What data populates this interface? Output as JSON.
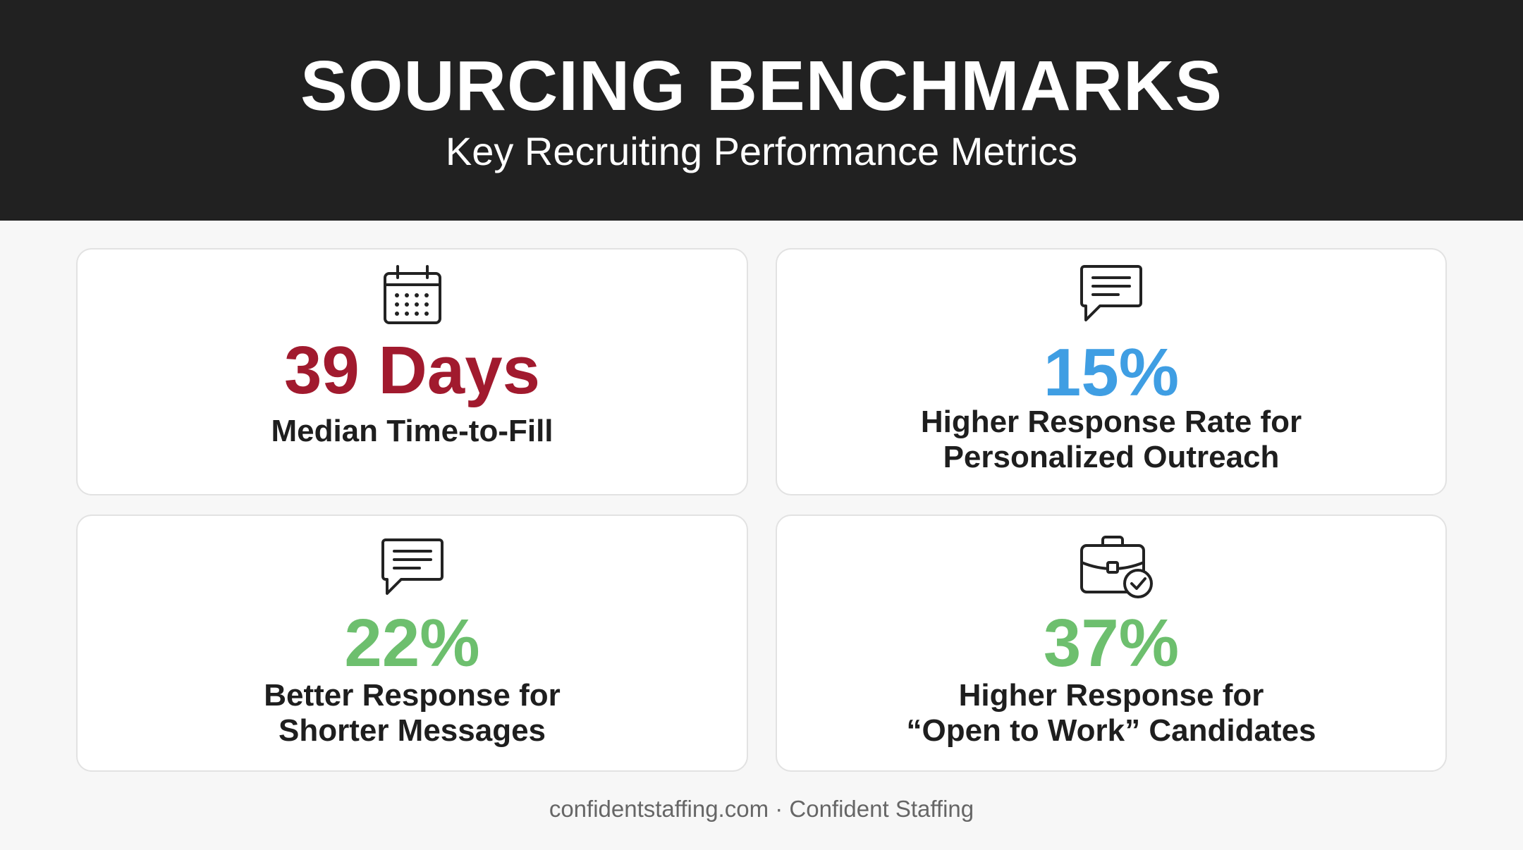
{
  "header": {
    "title": "SOURCING BENCHMARKS",
    "subtitle": "Key Recruiting Performance Metrics",
    "background": "#212121"
  },
  "cards": [
    {
      "icon": "calendar-icon",
      "metric": "39 Days",
      "metric_color": "#a11a2e",
      "caption_lines": [
        "Median Time-to-Fill"
      ]
    },
    {
      "icon": "chat-bubble-icon",
      "metric": "15%",
      "metric_color": "#3f9ee3",
      "caption_lines": [
        "Higher Response Rate for",
        "Personalized Outreach"
      ]
    },
    {
      "icon": "chat-bubble-icon",
      "metric": "22%",
      "metric_color": "#6dbf6e",
      "caption_lines": [
        "Better Response for",
        "Shorter Messages"
      ]
    },
    {
      "icon": "briefcase-check-icon",
      "metric": "37%",
      "metric_color": "#6dbf6e",
      "caption_lines": [
        "Higher Response for",
        "“Open to Work” Candidates"
      ]
    }
  ],
  "footer": {
    "text": "confidentstaffing.com · Confident Staffing"
  }
}
